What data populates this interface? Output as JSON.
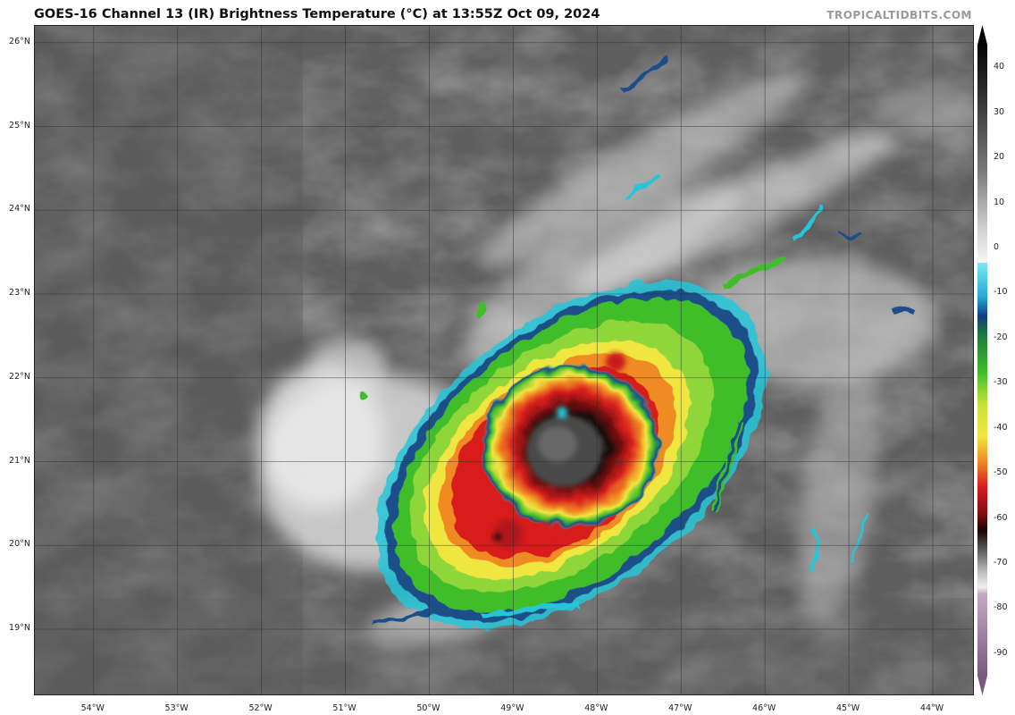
{
  "header": {
    "title": "GOES-16 Channel 13 (IR) Brightness Temperature (°C) at 13:55Z Oct 09, 2024",
    "credit": "TROPICALTIDBITS.COM"
  },
  "map": {
    "lat_labels": [
      "26°N",
      "25°N",
      "24°N",
      "23°N",
      "22°N",
      "21°N",
      "20°N",
      "19°N"
    ],
    "lat_values": [
      26,
      25,
      24,
      23,
      22,
      21,
      20,
      19
    ],
    "lon_labels": [
      "54°W",
      "53°W",
      "52°W",
      "51°W",
      "50°W",
      "49°W",
      "48°W",
      "47°W",
      "46°W",
      "45°W",
      "44°W"
    ],
    "lon_values": [
      -54,
      -53,
      -52,
      -51,
      -50,
      -49,
      -48,
      -47,
      -46,
      -45,
      -44
    ],
    "lat_range": [
      18.2,
      26.2
    ],
    "lon_range": [
      -54.7,
      -43.5
    ],
    "storm_center": {
      "lon": -48.4,
      "lat": 21.0
    }
  },
  "colorbar": {
    "labels": [
      "40",
      "30",
      "20",
      "10",
      "0",
      "-10",
      "-20",
      "-30",
      "-40",
      "-50",
      "-60",
      "-70",
      "-80",
      "-90"
    ],
    "range": [
      -95,
      45
    ],
    "colors": {
      "warm_gray": "#3a3a3a",
      "cold_white": "#f4f4f4",
      "cyan": "#26c6d8",
      "blue": "#1c4f8a",
      "green": "#3fbe2c",
      "yellow": "#f0e640",
      "orange": "#f08a24",
      "red": "#d81e1e",
      "dark_red": "#6e0d0d",
      "eye_gray": "#555555",
      "purple": "#8a6a8e"
    }
  }
}
